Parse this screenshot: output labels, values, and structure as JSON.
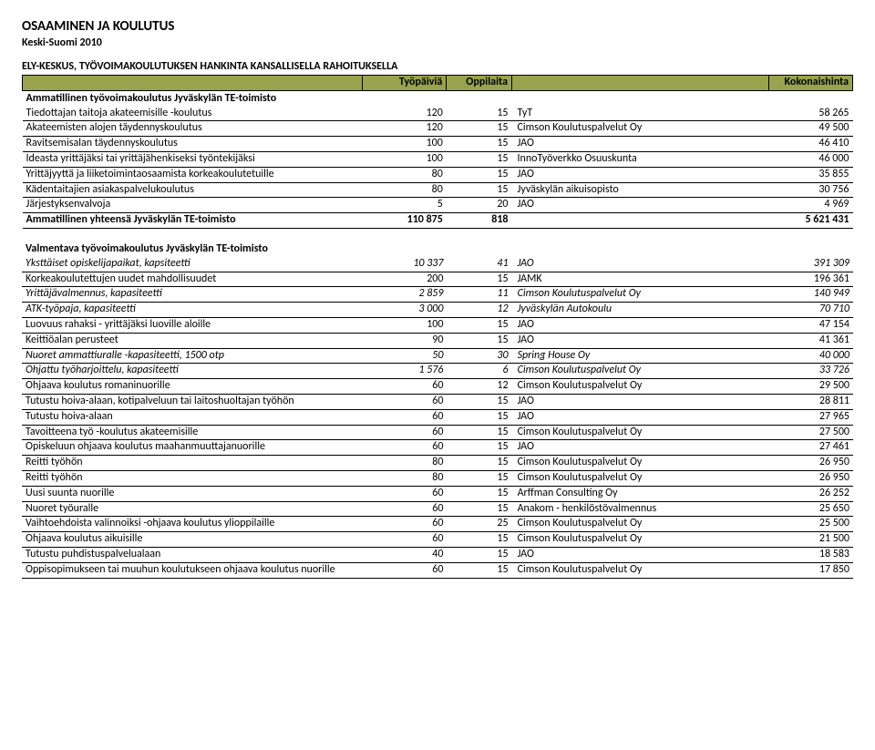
{
  "header": {
    "title1": "OSAAMINEN JA KOULUTUS",
    "title2": "Keski-Suomi 2010",
    "section": "ELY-KESKUS, TYÖVOIMAKOULUTUKSEN HANKINTA KANSALLISELLA RAHOITUKSELLA"
  },
  "columns": {
    "col2": "Työpäiviä",
    "col3": "Oppilaita",
    "col5": "Kokonaishinta"
  },
  "group1": {
    "title": "Ammatillinen työvoimakoulutus Jyväskylän TE-toimisto",
    "rows": [
      {
        "label": "Tiedottajan taitoja akateemisille -koulutus",
        "a": "120",
        "b": "15",
        "prov": "TyT",
        "cost": "58 265"
      },
      {
        "label": "Akateemisten alojen täydennyskoulutus",
        "a": "120",
        "b": "15",
        "prov": "Cimson Koulutuspalvelut Oy",
        "cost": "49 500"
      },
      {
        "label": "Ravitsemisalan täydennyskoulutus",
        "a": "100",
        "b": "15",
        "prov": "JAO",
        "cost": "46 410"
      },
      {
        "label": "Ideasta yrittäjäksi tai yrittäjähenkiseksi työntekijäksi",
        "a": "100",
        "b": "15",
        "prov": "InnoTyöverkko Osuuskunta",
        "cost": "46 000"
      },
      {
        "label": "Yrittäjyyttä ja liiketoimintaosaamista korkeakoulutetuille",
        "a": "80",
        "b": "15",
        "prov": "JAO",
        "cost": "35 855"
      },
      {
        "label": "Kädentaitajien asiakaspalvelukoulutus",
        "a": "80",
        "b": "15",
        "prov": "Jyväskylän aikuisopisto",
        "cost": "30 756"
      },
      {
        "label": "Järjestyksenvalvoja",
        "a": "5",
        "b": "20",
        "prov": "JAO",
        "cost": "4 969"
      }
    ],
    "total": {
      "label": "Ammatillinen yhteensä Jyväskylän TE-toimisto",
      "a": "110 875",
      "b": "818",
      "prov": "",
      "cost": "5 621 431"
    }
  },
  "group2": {
    "title": "Valmentava työvoimakoulutus Jyväskylän TE-toimisto",
    "rows": [
      {
        "italic": true,
        "label": "Yksttäiset opiskelijapaikat, kapsiteetti",
        "a": "10 337",
        "b": "41",
        "prov": "JAO",
        "cost": "391 309"
      },
      {
        "label": "Korkeakoulutettujen uudet mahdollisuudet",
        "a": "200",
        "b": "15",
        "prov": "JAMK",
        "cost": "196 361"
      },
      {
        "italic": true,
        "label": "Yrittäjävalmennus, kapasiteetti",
        "a": "2 859",
        "b": "11",
        "prov": "Cimson Koulutuspalvelut Oy",
        "cost": "140 949"
      },
      {
        "italic": true,
        "label": "ATK-työpaja, kapasiteetti",
        "a": "3 000",
        "b": "12",
        "prov": "Jyväskylän Autokoulu",
        "cost": "70 710"
      },
      {
        "label": "Luovuus rahaksi - yrittäjäksi luoville aloille",
        "a": "100",
        "b": "15",
        "prov": "JAO",
        "cost": "47 154"
      },
      {
        "label": "Keittiöalan perusteet",
        "a": "90",
        "b": "15",
        "prov": "JAO",
        "cost": "41 361"
      },
      {
        "italic": true,
        "label": "Nuoret ammattiuralle -kapasiteetti, 1500 otp",
        "a": "50",
        "b": "30",
        "prov": "Spring House Oy",
        "cost": "40 000"
      },
      {
        "italic": true,
        "label": "Ohjattu työharjoittelu, kapasiteetti",
        "a": "1 576",
        "b": "6",
        "prov": "Cimson Koulutuspalvelut Oy",
        "cost": "33 726"
      },
      {
        "label": "Ohjaava koulutus romaninuorille",
        "a": "60",
        "b": "12",
        "prov": "Cimson Koulutuspalvelut Oy",
        "cost": "29 500"
      },
      {
        "label": "Tutustu hoiva-alaan, kotipalveluun tai laitoshuoltajan työhön",
        "a": "60",
        "b": "15",
        "prov": "JAO",
        "cost": "28 811"
      },
      {
        "label": "Tutustu hoiva-alaan",
        "a": "60",
        "b": "15",
        "prov": "JAO",
        "cost": "27 965"
      },
      {
        "label": "Tavoitteena työ -koulutus akateemisille",
        "a": "60",
        "b": "15",
        "prov": "Cimson Koulutuspalvelut Oy",
        "cost": "27 500"
      },
      {
        "label": "Opiskeluun ohjaava koulutus maahanmuuttajanuorille",
        "a": "60",
        "b": "15",
        "prov": "JAO",
        "cost": "27 461"
      },
      {
        "label": "Reitti työhön",
        "a": "80",
        "b": "15",
        "prov": "Cimson Koulutuspalvelut Oy",
        "cost": "26 950"
      },
      {
        "label": "Reitti työhön",
        "a": "80",
        "b": "15",
        "prov": "Cimson Koulutuspalvelut Oy",
        "cost": "26 950"
      },
      {
        "label": "Uusi suunta nuorille",
        "a": "60",
        "b": "15",
        "prov": "Arffman Consulting Oy",
        "cost": "26 252"
      },
      {
        "label": "Nuoret työuralle",
        "a": "60",
        "b": "15",
        "prov": "Anakom - henkilöstövalmennus",
        "cost": "25 650"
      },
      {
        "label": "Vaihtoehdoista valinnoiksi -ohjaava koulutus ylioppilaille",
        "a": "60",
        "b": "25",
        "prov": "Cimson Koulutuspalvelut Oy",
        "cost": "25 500"
      },
      {
        "label": "Ohjaava koulutus aikuisille",
        "a": "60",
        "b": "15",
        "prov": "Cimson Koulutuspalvelut Oy",
        "cost": "21 500"
      },
      {
        "label": "Tutustu puhdistuspalvelualaan",
        "a": "40",
        "b": "15",
        "prov": "JAO",
        "cost": "18 583"
      },
      {
        "label": "Oppisopimukseen tai muuhun koulutukseen ohjaava koulutus nuorille",
        "a": "60",
        "b": "15",
        "prov": "Cimson Koulutuspalvelut Oy",
        "cost": "17 850"
      }
    ]
  }
}
